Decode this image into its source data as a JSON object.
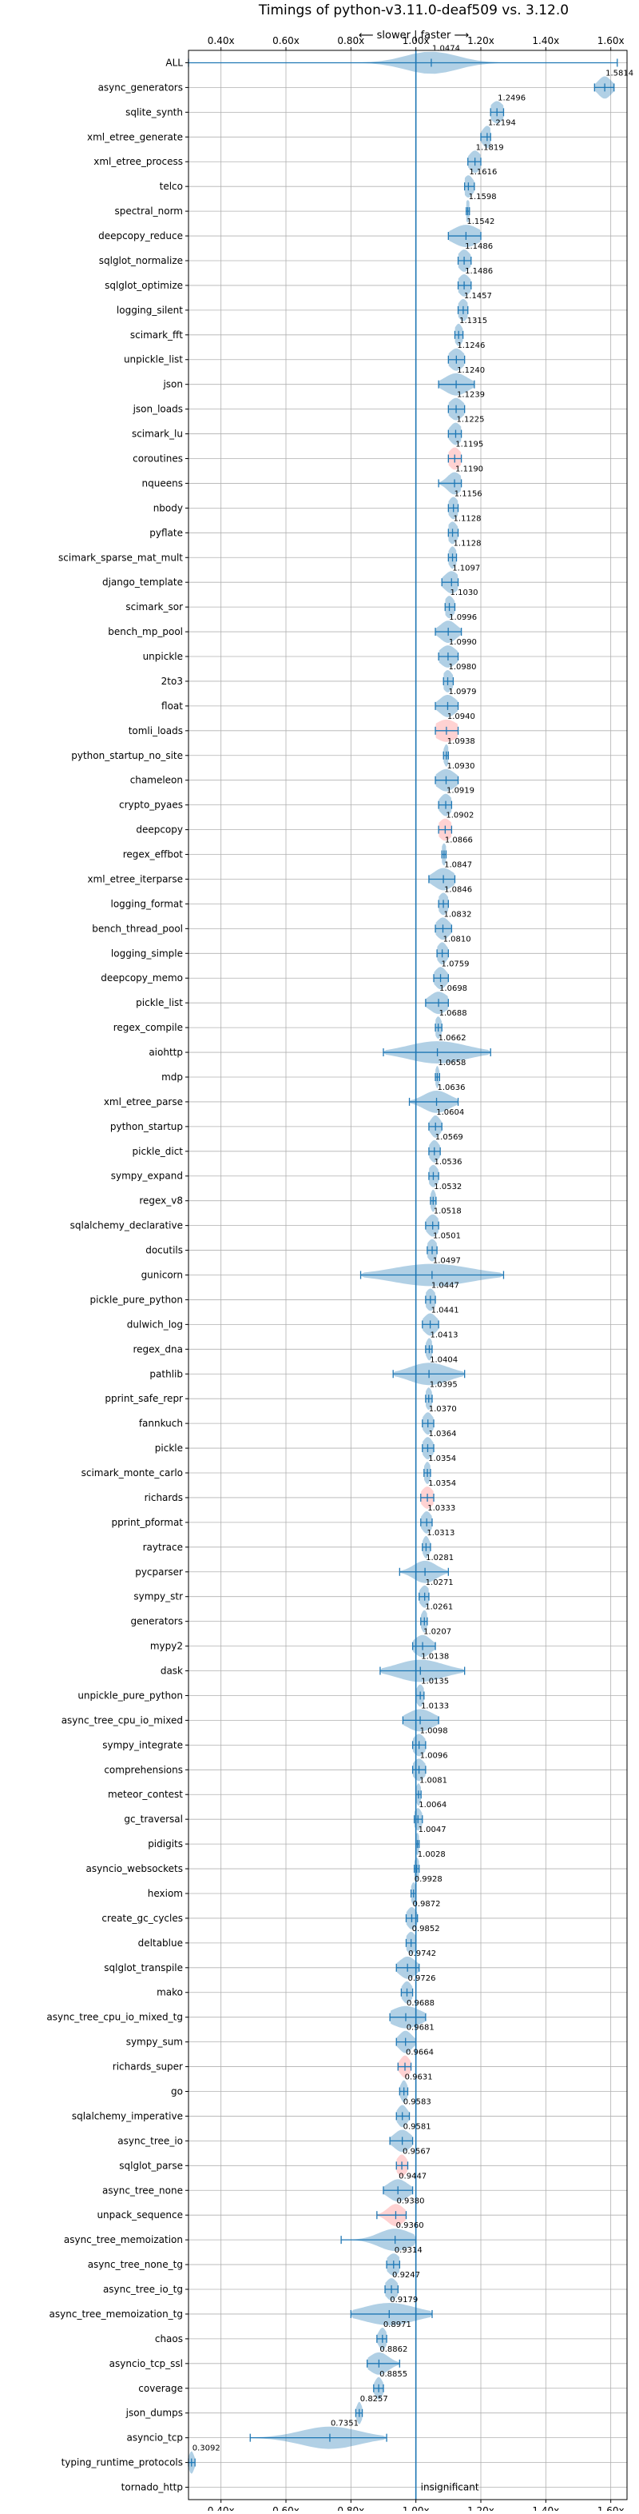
{
  "chart_data": {
    "type": "violin",
    "title": "Timings of python-v3.11.0-deaf509 vs. 3.12.0",
    "subtitle": "⟵ slower | faster ⟶",
    "xlim": [
      0.3,
      1.65
    ],
    "xticks": [
      "0.40x",
      "0.60x",
      "0.80x",
      "1.00x",
      "1.20x",
      "1.40x",
      "1.60x"
    ],
    "xtick_values": [
      0.4,
      0.6,
      0.8,
      1.0,
      1.2,
      1.4,
      1.6
    ],
    "reference_line": 1.0,
    "grid": true,
    "insignificant_label": "insignificant",
    "colors": {
      "normal": "#1f77b4",
      "regression": "#ff7f7f"
    },
    "benchmarks": [
      {
        "name": "ALL",
        "value": 1.0474,
        "label": "1.0474",
        "lo": 0.3,
        "hi": 1.62,
        "spread": 0.08,
        "color": "normal"
      },
      {
        "name": "async_generators",
        "value": 1.5814,
        "label": "1.5814",
        "lo": 1.55,
        "hi": 1.61,
        "spread": 0.02,
        "color": "normal"
      },
      {
        "name": "sqlite_synth",
        "value": 1.2496,
        "label": "1.2496",
        "lo": 1.23,
        "hi": 1.27,
        "spread": 0.02,
        "color": "normal"
      },
      {
        "name": "xml_etree_generate",
        "value": 1.2194,
        "label": "1.2194",
        "lo": 1.2,
        "hi": 1.23,
        "spread": 0.015,
        "color": "normal"
      },
      {
        "name": "xml_etree_process",
        "value": 1.1819,
        "label": "1.1819",
        "lo": 1.16,
        "hi": 1.2,
        "spread": 0.018,
        "color": "normal"
      },
      {
        "name": "telco",
        "value": 1.1616,
        "label": "1.1616",
        "lo": 1.15,
        "hi": 1.18,
        "spread": 0.015,
        "color": "normal"
      },
      {
        "name": "spectral_norm",
        "value": 1.1598,
        "label": "1.1598",
        "lo": 1.155,
        "hi": 1.165,
        "spread": 0.008,
        "color": "normal"
      },
      {
        "name": "deepcopy_reduce",
        "value": 1.1542,
        "label": "1.1542",
        "lo": 1.1,
        "hi": 1.2,
        "spread": 0.04,
        "color": "normal"
      },
      {
        "name": "sqlglot_normalize",
        "value": 1.1486,
        "label": "1.1486",
        "lo": 1.13,
        "hi": 1.17,
        "spread": 0.018,
        "color": "normal"
      },
      {
        "name": "sqlglot_optimize",
        "value": 1.1486,
        "label": "1.1486",
        "lo": 1.13,
        "hi": 1.17,
        "spread": 0.018,
        "color": "normal"
      },
      {
        "name": "logging_silent",
        "value": 1.1457,
        "label": "1.1457",
        "lo": 1.13,
        "hi": 1.16,
        "spread": 0.015,
        "color": "normal"
      },
      {
        "name": "scimark_fft",
        "value": 1.1315,
        "label": "1.1315",
        "lo": 1.12,
        "hi": 1.145,
        "spread": 0.012,
        "color": "normal"
      },
      {
        "name": "unpickle_list",
        "value": 1.1246,
        "label": "1.1246",
        "lo": 1.1,
        "hi": 1.15,
        "spread": 0.022,
        "color": "normal"
      },
      {
        "name": "json",
        "value": 1.124,
        "label": "1.1240",
        "lo": 1.07,
        "hi": 1.18,
        "spread": 0.035,
        "color": "normal"
      },
      {
        "name": "json_loads",
        "value": 1.1239,
        "label": "1.1239",
        "lo": 1.1,
        "hi": 1.15,
        "spread": 0.022,
        "color": "normal"
      },
      {
        "name": "scimark_lu",
        "value": 1.1225,
        "label": "1.1225",
        "lo": 1.1,
        "hi": 1.14,
        "spread": 0.018,
        "color": "normal"
      },
      {
        "name": "coroutines",
        "value": 1.1195,
        "label": "1.1195",
        "lo": 1.1,
        "hi": 1.14,
        "spread": 0.018,
        "color": "regression"
      },
      {
        "name": "nqueens",
        "value": 1.119,
        "label": "1.1190",
        "lo": 1.07,
        "hi": 1.14,
        "spread": 0.022,
        "color": "normal"
      },
      {
        "name": "nbody",
        "value": 1.1156,
        "label": "1.1156",
        "lo": 1.1,
        "hi": 1.13,
        "spread": 0.015,
        "color": "normal"
      },
      {
        "name": "pyflate",
        "value": 1.1128,
        "label": "1.1128",
        "lo": 1.1,
        "hi": 1.13,
        "spread": 0.015,
        "color": "normal"
      },
      {
        "name": "scimark_sparse_mat_mult",
        "value": 1.1128,
        "label": "1.1128",
        "lo": 1.1,
        "hi": 1.125,
        "spread": 0.012,
        "color": "normal"
      },
      {
        "name": "django_template",
        "value": 1.1097,
        "label": "1.1097",
        "lo": 1.08,
        "hi": 1.13,
        "spread": 0.022,
        "color": "normal"
      },
      {
        "name": "scimark_sor",
        "value": 1.103,
        "label": "1.1030",
        "lo": 1.09,
        "hi": 1.12,
        "spread": 0.015,
        "color": "normal"
      },
      {
        "name": "bench_mp_pool",
        "value": 1.0996,
        "label": "1.0996",
        "lo": 1.06,
        "hi": 1.14,
        "spread": 0.025,
        "color": "normal"
      },
      {
        "name": "unpickle",
        "value": 1.099,
        "label": "1.0990",
        "lo": 1.07,
        "hi": 1.13,
        "spread": 0.025,
        "color": "normal"
      },
      {
        "name": "2to3",
        "value": 1.098,
        "label": "1.0980",
        "lo": 1.085,
        "hi": 1.115,
        "spread": 0.015,
        "color": "normal"
      },
      {
        "name": "float",
        "value": 1.0979,
        "label": "1.0979",
        "lo": 1.06,
        "hi": 1.13,
        "spread": 0.025,
        "color": "normal"
      },
      {
        "name": "tomli_loads",
        "value": 1.094,
        "label": "1.0940",
        "lo": 1.06,
        "hi": 1.13,
        "spread": 0.035,
        "color": "regression"
      },
      {
        "name": "python_startup_no_site",
        "value": 1.0938,
        "label": "1.0938",
        "lo": 1.085,
        "hi": 1.1,
        "spread": 0.008,
        "color": "normal"
      },
      {
        "name": "chameleon",
        "value": 1.093,
        "label": "1.0930",
        "lo": 1.06,
        "hi": 1.13,
        "spread": 0.028,
        "color": "normal"
      },
      {
        "name": "crypto_pyaes",
        "value": 1.0919,
        "label": "1.0919",
        "lo": 1.07,
        "hi": 1.11,
        "spread": 0.018,
        "color": "normal"
      },
      {
        "name": "deepcopy",
        "value": 1.0902,
        "label": "1.0902",
        "lo": 1.07,
        "hi": 1.11,
        "spread": 0.02,
        "color": "regression"
      },
      {
        "name": "regex_effbot",
        "value": 1.0866,
        "label": "1.0866",
        "lo": 1.08,
        "hi": 1.093,
        "spread": 0.008,
        "color": "normal"
      },
      {
        "name": "xml_etree_iterparse",
        "value": 1.0847,
        "label": "1.0847",
        "lo": 1.04,
        "hi": 1.12,
        "spread": 0.03,
        "color": "normal"
      },
      {
        "name": "logging_format",
        "value": 1.0846,
        "label": "1.0846",
        "lo": 1.07,
        "hi": 1.1,
        "spread": 0.015,
        "color": "normal"
      },
      {
        "name": "bench_thread_pool",
        "value": 1.0832,
        "label": "1.0832",
        "lo": 1.06,
        "hi": 1.11,
        "spread": 0.02,
        "color": "normal"
      },
      {
        "name": "logging_simple",
        "value": 1.081,
        "label": "1.0810",
        "lo": 1.065,
        "hi": 1.1,
        "spread": 0.015,
        "color": "normal"
      },
      {
        "name": "deepcopy_memo",
        "value": 1.0759,
        "label": "1.0759",
        "lo": 1.055,
        "hi": 1.1,
        "spread": 0.018,
        "color": "normal"
      },
      {
        "name": "pickle_list",
        "value": 1.0698,
        "label": "1.0698",
        "lo": 1.03,
        "hi": 1.1,
        "spread": 0.028,
        "color": "normal"
      },
      {
        "name": "regex_compile",
        "value": 1.0688,
        "label": "1.0688",
        "lo": 1.06,
        "hi": 1.08,
        "spread": 0.01,
        "color": "normal"
      },
      {
        "name": "aiohttp",
        "value": 1.0662,
        "label": "1.0662",
        "lo": 0.9,
        "hi": 1.23,
        "spread": 0.09,
        "color": "normal"
      },
      {
        "name": "mdp",
        "value": 1.0658,
        "label": "1.0658",
        "lo": 1.06,
        "hi": 1.073,
        "spread": 0.006,
        "color": "normal"
      },
      {
        "name": "xml_etree_parse",
        "value": 1.0636,
        "label": "1.0636",
        "lo": 0.98,
        "hi": 1.13,
        "spread": 0.04,
        "color": "normal"
      },
      {
        "name": "python_startup",
        "value": 1.0604,
        "label": "1.0604",
        "lo": 1.04,
        "hi": 1.08,
        "spread": 0.015,
        "color": "normal"
      },
      {
        "name": "pickle_dict",
        "value": 1.0569,
        "label": "1.0569",
        "lo": 1.04,
        "hi": 1.075,
        "spread": 0.015,
        "color": "normal"
      },
      {
        "name": "sympy_expand",
        "value": 1.0536,
        "label": "1.0536",
        "lo": 1.04,
        "hi": 1.07,
        "spread": 0.015,
        "color": "normal"
      },
      {
        "name": "regex_v8",
        "value": 1.0532,
        "label": "1.0532",
        "lo": 1.045,
        "hi": 1.062,
        "spread": 0.008,
        "color": "normal"
      },
      {
        "name": "sqlalchemy_declarative",
        "value": 1.0518,
        "label": "1.0518",
        "lo": 1.03,
        "hi": 1.07,
        "spread": 0.018,
        "color": "normal"
      },
      {
        "name": "docutils",
        "value": 1.0501,
        "label": "1.0501",
        "lo": 1.035,
        "hi": 1.065,
        "spread": 0.015,
        "color": "normal"
      },
      {
        "name": "gunicorn",
        "value": 1.0497,
        "label": "1.0497",
        "lo": 0.83,
        "hi": 1.27,
        "spread": 0.12,
        "color": "normal"
      },
      {
        "name": "pickle_pure_python",
        "value": 1.0447,
        "label": "1.0447",
        "lo": 1.03,
        "hi": 1.06,
        "spread": 0.015,
        "color": "normal"
      },
      {
        "name": "dulwich_log",
        "value": 1.0441,
        "label": "1.0441",
        "lo": 1.02,
        "hi": 1.07,
        "spread": 0.02,
        "color": "normal"
      },
      {
        "name": "regex_dna",
        "value": 1.0413,
        "label": "1.0413",
        "lo": 1.03,
        "hi": 1.05,
        "spread": 0.01,
        "color": "normal"
      },
      {
        "name": "pathlib",
        "value": 1.0404,
        "label": "1.0404",
        "lo": 0.93,
        "hi": 1.15,
        "spread": 0.06,
        "color": "normal"
      },
      {
        "name": "pprint_safe_repr",
        "value": 1.0395,
        "label": "1.0395",
        "lo": 1.03,
        "hi": 1.05,
        "spread": 0.01,
        "color": "normal"
      },
      {
        "name": "fannkuch",
        "value": 1.037,
        "label": "1.0370",
        "lo": 1.02,
        "hi": 1.055,
        "spread": 0.015,
        "color": "normal"
      },
      {
        "name": "pickle",
        "value": 1.0364,
        "label": "1.0364",
        "lo": 1.02,
        "hi": 1.055,
        "spread": 0.015,
        "color": "normal"
      },
      {
        "name": "scimark_monte_carlo",
        "value": 1.0354,
        "label": "1.0354",
        "lo": 1.025,
        "hi": 1.045,
        "spread": 0.01,
        "color": "normal"
      },
      {
        "name": "richards",
        "value": 1.0354,
        "label": "1.0354",
        "lo": 1.015,
        "hi": 1.055,
        "spread": 0.018,
        "color": "regression"
      },
      {
        "name": "pprint_pformat",
        "value": 1.0333,
        "label": "1.0333",
        "lo": 1.015,
        "hi": 1.05,
        "spread": 0.015,
        "color": "normal"
      },
      {
        "name": "raytrace",
        "value": 1.0313,
        "label": "1.0313",
        "lo": 1.02,
        "hi": 1.045,
        "spread": 0.01,
        "color": "normal"
      },
      {
        "name": "pycparser",
        "value": 1.0281,
        "label": "1.0281",
        "lo": 0.95,
        "hi": 1.1,
        "spread": 0.035,
        "color": "normal"
      },
      {
        "name": "sympy_str",
        "value": 1.0271,
        "label": "1.0271",
        "lo": 1.01,
        "hi": 1.04,
        "spread": 0.015,
        "color": "normal"
      },
      {
        "name": "generators",
        "value": 1.0261,
        "label": "1.0261",
        "lo": 1.015,
        "hi": 1.035,
        "spread": 0.01,
        "color": "normal"
      },
      {
        "name": "mypy2",
        "value": 1.0207,
        "label": "1.0207",
        "lo": 0.99,
        "hi": 1.06,
        "spread": 0.025,
        "color": "normal"
      },
      {
        "name": "dask",
        "value": 1.0138,
        "label": "1.0138",
        "lo": 0.89,
        "hi": 1.15,
        "spread": 0.07,
        "color": "normal"
      },
      {
        "name": "unpickle_pure_python",
        "value": 1.0135,
        "label": "1.0135",
        "lo": 1.0,
        "hi": 1.025,
        "spread": 0.012,
        "color": "normal"
      },
      {
        "name": "async_tree_cpu_io_mixed",
        "value": 1.0133,
        "label": "1.0133",
        "lo": 0.96,
        "hi": 1.07,
        "spread": 0.04,
        "color": "normal"
      },
      {
        "name": "sympy_integrate",
        "value": 1.0098,
        "label": "1.0098",
        "lo": 0.99,
        "hi": 1.03,
        "spread": 0.018,
        "color": "normal"
      },
      {
        "name": "comprehensions",
        "value": 1.0096,
        "label": "1.0096",
        "lo": 0.99,
        "hi": 1.03,
        "spread": 0.018,
        "color": "normal"
      },
      {
        "name": "meteor_contest",
        "value": 1.0081,
        "label": "1.0081",
        "lo": 1.0,
        "hi": 1.016,
        "spread": 0.008,
        "color": "normal"
      },
      {
        "name": "gc_traversal",
        "value": 1.0064,
        "label": "1.0064",
        "lo": 0.995,
        "hi": 1.02,
        "spread": 0.012,
        "color": "normal"
      },
      {
        "name": "pidigits",
        "value": 1.0047,
        "label": "1.0047",
        "lo": 1.0,
        "hi": 1.01,
        "spread": 0.006,
        "color": "normal"
      },
      {
        "name": "asyncio_websockets",
        "value": 1.0028,
        "label": "1.0028",
        "lo": 0.995,
        "hi": 1.01,
        "spread": 0.008,
        "color": "normal"
      },
      {
        "name": "hexiom",
        "value": 0.9928,
        "label": "0.9928",
        "lo": 0.985,
        "hi": 1.0,
        "spread": 0.008,
        "color": "normal"
      },
      {
        "name": "create_gc_cycles",
        "value": 0.9872,
        "label": "0.9872",
        "lo": 0.97,
        "hi": 1.005,
        "spread": 0.015,
        "color": "normal"
      },
      {
        "name": "deltablue",
        "value": 0.9852,
        "label": "0.9852",
        "lo": 0.97,
        "hi": 1.0,
        "spread": 0.015,
        "color": "normal"
      },
      {
        "name": "sqlglot_transpile",
        "value": 0.9742,
        "label": "0.9742",
        "lo": 0.94,
        "hi": 1.01,
        "spread": 0.025,
        "color": "normal"
      },
      {
        "name": "mako",
        "value": 0.9726,
        "label": "0.9726",
        "lo": 0.955,
        "hi": 0.99,
        "spread": 0.015,
        "color": "normal"
      },
      {
        "name": "async_tree_cpu_io_mixed_tg",
        "value": 0.9688,
        "label": "0.9688",
        "lo": 0.92,
        "hi": 1.03,
        "spread": 0.045,
        "color": "normal"
      },
      {
        "name": "sympy_sum",
        "value": 0.9681,
        "label": "0.9681",
        "lo": 0.94,
        "hi": 1.0,
        "spread": 0.02,
        "color": "normal"
      },
      {
        "name": "richards_super",
        "value": 0.9664,
        "label": "0.9664",
        "lo": 0.945,
        "hi": 0.985,
        "spread": 0.015,
        "color": "regression"
      },
      {
        "name": "go",
        "value": 0.9631,
        "label": "0.9631",
        "lo": 0.95,
        "hi": 0.975,
        "spread": 0.01,
        "color": "normal"
      },
      {
        "name": "sqlalchemy_imperative",
        "value": 0.9583,
        "label": "0.9583",
        "lo": 0.94,
        "hi": 0.98,
        "spread": 0.015,
        "color": "normal"
      },
      {
        "name": "async_tree_io",
        "value": 0.9581,
        "label": "0.9581",
        "lo": 0.92,
        "hi": 0.99,
        "spread": 0.025,
        "color": "normal"
      },
      {
        "name": "sqlglot_parse",
        "value": 0.9567,
        "label": "0.9567",
        "lo": 0.94,
        "hi": 0.975,
        "spread": 0.015,
        "color": "regression"
      },
      {
        "name": "async_tree_none",
        "value": 0.9447,
        "label": "0.9447",
        "lo": 0.9,
        "hi": 0.99,
        "spread": 0.03,
        "color": "normal"
      },
      {
        "name": "unpack_sequence",
        "value": 0.938,
        "label": "0.9380",
        "lo": 0.88,
        "hi": 0.97,
        "spread": 0.025,
        "color": "regression"
      },
      {
        "name": "async_tree_memoization",
        "value": 0.936,
        "label": "0.9360",
        "lo": 0.77,
        "hi": 1.0,
        "spread": 0.05,
        "color": "normal"
      },
      {
        "name": "async_tree_none_tg",
        "value": 0.9314,
        "label": "0.9314",
        "lo": 0.91,
        "hi": 0.95,
        "spread": 0.02,
        "color": "normal"
      },
      {
        "name": "async_tree_io_tg",
        "value": 0.9247,
        "label": "0.9247",
        "lo": 0.905,
        "hi": 0.945,
        "spread": 0.018,
        "color": "normal"
      },
      {
        "name": "async_tree_memoization_tg",
        "value": 0.9179,
        "label": "0.9179",
        "lo": 0.8,
        "hi": 1.05,
        "spread": 0.08,
        "color": "normal"
      },
      {
        "name": "chaos",
        "value": 0.8971,
        "label": "0.8971",
        "lo": 0.88,
        "hi": 0.91,
        "spread": 0.012,
        "color": "normal"
      },
      {
        "name": "asyncio_tcp_ssl",
        "value": 0.8862,
        "label": "0.8862",
        "lo": 0.85,
        "hi": 0.95,
        "spread": 0.03,
        "color": "normal"
      },
      {
        "name": "coverage",
        "value": 0.8855,
        "label": "0.8855",
        "lo": 0.87,
        "hi": 0.9,
        "spread": 0.012,
        "color": "normal"
      },
      {
        "name": "json_dumps",
        "value": 0.8257,
        "label": "0.8257",
        "lo": 0.815,
        "hi": 0.835,
        "spread": 0.008,
        "color": "normal"
      },
      {
        "name": "asyncio_tcp",
        "value": 0.7351,
        "label": "0.7351",
        "lo": 0.49,
        "hi": 0.91,
        "spread": 0.09,
        "color": "normal"
      },
      {
        "name": "typing_runtime_protocols",
        "value": 0.3092,
        "label": "0.3092",
        "lo": 0.3,
        "hi": 0.32,
        "spread": 0.008,
        "color": "normal"
      },
      {
        "name": "tornado_http",
        "value": null,
        "label": "",
        "lo": null,
        "hi": null,
        "spread": 0,
        "color": "normal",
        "insignificant": true
      }
    ]
  }
}
